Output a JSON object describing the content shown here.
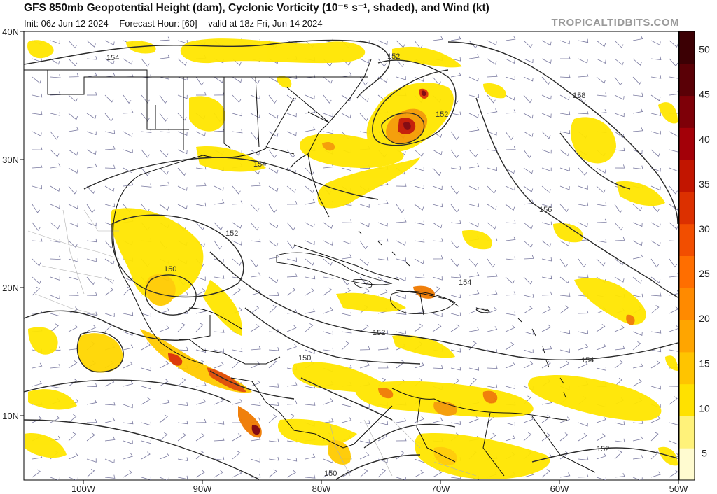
{
  "header": {
    "title": "GFS 850mb Geopotential Height (dam), Cyclonic Vorticity (10⁻⁵ s⁻¹, shaded), and Wind (kt)",
    "init": "Init: 06z Jun 12 2024",
    "forecast_hour": "Forecast Hour: [60]",
    "valid": "valid at 18z Fri, Jun 14 2024",
    "credit": "TROPICALTIDBITS.COM"
  },
  "axes": {
    "lat_labels": [
      "40N",
      "30N",
      "20N",
      "10N"
    ],
    "lon_labels": [
      "100W",
      "90W",
      "80W",
      "70W",
      "60W",
      "50W"
    ]
  },
  "colorbar": {
    "ticks": [
      "5",
      "10",
      "15",
      "20",
      "25",
      "30",
      "35",
      "40",
      "45",
      "50"
    ],
    "colors": [
      "#fffbd0",
      "#fff27a",
      "#ffe100",
      "#ffc400",
      "#ffa500",
      "#ff8a00",
      "#ff6e00",
      "#f24e00",
      "#dc3000",
      "#c21500",
      "#a30008",
      "#7e0008",
      "#5a0006",
      "#3c0004"
    ]
  },
  "contours": {
    "labels": [
      "154",
      "152",
      "158",
      "152",
      "154",
      "156",
      "152",
      "150",
      "154",
      "152",
      "150",
      "154",
      "152",
      "150"
    ]
  },
  "map": {
    "land_color": "#ffffff",
    "vorticity_color": "#ffe600",
    "strong_vorticity_color": "#f07a00",
    "peak_vorticity_color": "#7e0008"
  }
}
